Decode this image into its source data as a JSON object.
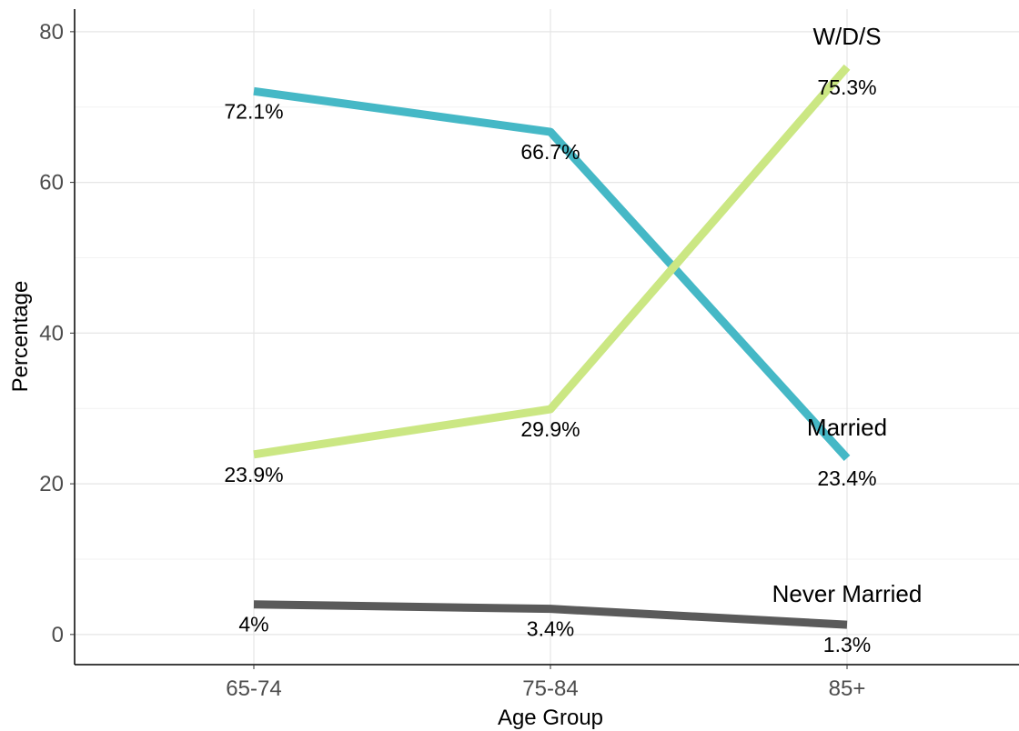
{
  "chart_data": {
    "type": "line",
    "xlabel": "Age Group",
    "ylabel": "Percentage",
    "categories": [
      "65-74",
      "75-84",
      "85+"
    ],
    "ylim": [
      -4,
      83
    ],
    "yticks": [
      0,
      20,
      40,
      60,
      80
    ],
    "grid": true,
    "legend": "none",
    "series": [
      {
        "name": "Married",
        "color": "#45b8c6",
        "values": [
          72.1,
          66.7,
          23.4
        ],
        "labels": [
          "72.1%",
          "66.7%",
          "23.4%"
        ]
      },
      {
        "name": "W/D/S",
        "color": "#cbe783",
        "values": [
          23.9,
          29.9,
          75.3
        ],
        "labels": [
          "23.9%",
          "29.9%",
          "75.3%"
        ]
      },
      {
        "name": "Never Married",
        "color": "#5a5a5a",
        "values": [
          4,
          3.4,
          1.3
        ],
        "labels": [
          "4%",
          "3.4%",
          "1.3%"
        ]
      }
    ]
  }
}
